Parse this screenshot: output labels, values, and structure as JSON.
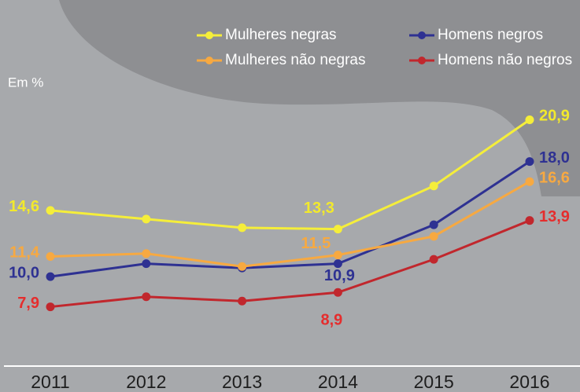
{
  "chart_data": {
    "type": "line",
    "unit_label": "Em %",
    "categories": [
      "2011",
      "2012",
      "2013",
      "2014",
      "2015",
      "2016"
    ],
    "series": [
      {
        "name": "Mulheres negras",
        "color": "#f5ee3a",
        "label_color": "#f2e92c",
        "values": [
          14.6,
          14.0,
          13.4,
          13.3,
          16.3,
          20.9
        ],
        "value_labels": [
          "14,6",
          null,
          null,
          "13,3",
          null,
          "20,9"
        ]
      },
      {
        "name": "Homens negros",
        "color": "#2e3192",
        "label_color": "#2e3192",
        "values": [
          10.0,
          10.9,
          10.6,
          10.9,
          13.6,
          18.0
        ],
        "value_labels": [
          "10,0",
          null,
          null,
          "10,9",
          null,
          "18,0"
        ]
      },
      {
        "name": "Mulheres não negras",
        "color": "#f7a941",
        "label_color": "#f7a941",
        "values": [
          11.4,
          11.6,
          10.7,
          11.5,
          12.8,
          16.6
        ],
        "value_labels": [
          "11,4",
          null,
          null,
          "11,5",
          null,
          "16,6"
        ]
      },
      {
        "name": "Homens não negros",
        "color": "#c1272d",
        "label_color": "#e52d2d",
        "values": [
          7.9,
          8.6,
          8.3,
          8.9,
          11.2,
          13.9
        ],
        "value_labels": [
          "7,9",
          null,
          null,
          "8,9",
          null,
          "13,9"
        ]
      }
    ],
    "ylim": [
      4,
      23
    ]
  }
}
